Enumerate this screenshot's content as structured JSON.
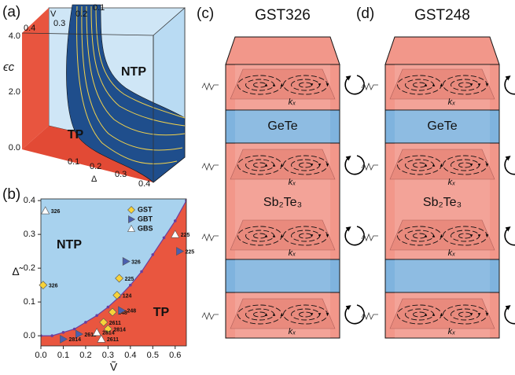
{
  "panel_a": {
    "label": "(a)",
    "v_axis": "V",
    "v_ticks": [
      "0.4",
      "0.3",
      "0.2",
      "0.1"
    ],
    "e_axis": "ϵc",
    "e_ticks": [
      "4.0",
      "2.0",
      "0.0"
    ],
    "d_axis": "Δ",
    "d_ticks": [
      "0.1",
      "0.2",
      "0.3",
      "0.4"
    ],
    "region_upper": "NTP",
    "region_lower": "TP"
  },
  "chart_data": {
    "type": "scatter",
    "panel_label": "(b)",
    "x_label": "Ṽ",
    "y_label": "Δ̃",
    "region_upper": "NTP",
    "region_lower": "TP",
    "upper_color": "#a8d2ee",
    "lower_color": "#e9563f",
    "xlim": [
      0,
      0.65
    ],
    "ylim": [
      -0.03,
      0.405
    ],
    "xticks": [
      {
        "value": 0,
        "label": "0.0"
      },
      0.1,
      0.2,
      0.3,
      0.4,
      0.5,
      0.6
    ],
    "yticks": [
      {
        "value": 0,
        "label": "0.0"
      },
      0.1,
      0.2,
      0.3,
      0.4
    ],
    "legend": "upper right",
    "boundary": {
      "color": "#6a3fa0",
      "x": [
        0,
        0.05,
        0.1,
        0.15,
        0.2,
        0.25,
        0.3,
        0.35,
        0.4,
        0.45,
        0.5,
        0.55,
        0.6,
        0.65
      ],
      "values": [
        0,
        0.0,
        0.01,
        0.02,
        0.04,
        0.06,
        0.085,
        0.115,
        0.15,
        0.19,
        0.24,
        0.29,
        0.34,
        0.4
      ]
    },
    "series": [
      {
        "name": "GST",
        "color": "#f7d23a",
        "marker": "diamond",
        "x": [
          0.01,
          0.35,
          0.34,
          0.32,
          0.28,
          0.3
        ],
        "values": [
          0.15,
          0.17,
          0.12,
          0.07,
          0.04,
          0.02
        ],
        "point_labels": [
          "326",
          "225",
          "124",
          "248",
          "2611",
          "2814"
        ]
      },
      {
        "name": "GBT",
        "color": "#4a5fb0",
        "marker": "triangle-right",
        "x": [
          0.38,
          0.62,
          0.36,
          0.17,
          0.1
        ],
        "values": [
          0.22,
          0.25,
          0.075,
          0.005,
          -0.01
        ],
        "point_labels": [
          "326",
          "225",
          "248",
          "2611",
          "2814"
        ]
      },
      {
        "name": "GBS",
        "color": "#ffffff",
        "marker": "triangle-up",
        "x": [
          0.02,
          0.6,
          0.25,
          0.27
        ],
        "values": [
          0.37,
          0.3,
          0.01,
          -0.01
        ],
        "point_labels": [
          "326",
          "225",
          "2814",
          "2611"
        ]
      }
    ]
  },
  "panels": [
    {
      "label": "(c)",
      "title": "GST326",
      "top_layer": "GeTe",
      "middle_layer": "Sb₂Te₃",
      "k_label": "kₓ"
    },
    {
      "label": "(d)",
      "title": "GST248",
      "top_layer": "GeTe",
      "middle_layer": "Sb₂Te₃",
      "k_label": "kₓ"
    }
  ]
}
